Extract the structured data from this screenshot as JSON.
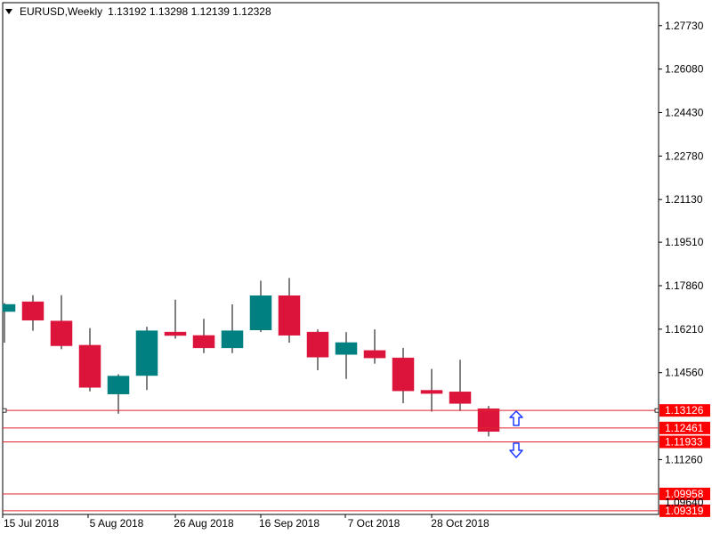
{
  "title": {
    "symbol_timeframe": "EURUSD,Weekly",
    "ohlc": "1.13192 1.13298 1.12139 1.12328"
  },
  "colors": {
    "bull": "#008080",
    "bear": "#dc143c",
    "level_line": "#e0242c",
    "level_label_bg": "#ff0000",
    "arrow": "#1e3cff",
    "axis": "#000000"
  },
  "icons": {
    "up_arrow": "arrow-up-outline",
    "down_arrow": "arrow-down-outline"
  },
  "chart_data": {
    "type": "candlestick",
    "y_ticks": [
      "1.27730",
      "1.26080",
      "1.24430",
      "1.22780",
      "1.21130",
      "1.19510",
      "1.17860",
      "1.16210",
      "1.14560"
    ],
    "x_ticks": [
      "15 Jul 2018",
      "5 Aug 2018",
      "26 Aug 2018",
      "16 Sep 2018",
      "7 Oct 2018",
      "28 Oct 2018"
    ],
    "ylim": [
      1.0918,
      1.286
    ],
    "candles": [
      {
        "o": 1.1688,
        "h": 1.172,
        "l": 1.157,
        "c": 1.1715
      },
      {
        "o": 1.1725,
        "h": 1.175,
        "l": 1.1615,
        "c": 1.1655
      },
      {
        "o": 1.1652,
        "h": 1.175,
        "l": 1.1545,
        "c": 1.1558
      },
      {
        "o": 1.156,
        "h": 1.1625,
        "l": 1.1385,
        "c": 1.14
      },
      {
        "o": 1.1375,
        "h": 1.145,
        "l": 1.13,
        "c": 1.1443
      },
      {
        "o": 1.1445,
        "h": 1.163,
        "l": 1.139,
        "c": 1.1615
      },
      {
        "o": 1.161,
        "h": 1.1733,
        "l": 1.1585,
        "c": 1.1597
      },
      {
        "o": 1.1597,
        "h": 1.166,
        "l": 1.153,
        "c": 1.155
      },
      {
        "o": 1.155,
        "h": 1.1715,
        "l": 1.153,
        "c": 1.1615
      },
      {
        "o": 1.1618,
        "h": 1.1805,
        "l": 1.161,
        "c": 1.1748
      },
      {
        "o": 1.1748,
        "h": 1.1815,
        "l": 1.157,
        "c": 1.1598
      },
      {
        "o": 1.161,
        "h": 1.162,
        "l": 1.1465,
        "c": 1.1515
      },
      {
        "o": 1.1525,
        "h": 1.161,
        "l": 1.1432,
        "c": 1.157
      },
      {
        "o": 1.154,
        "h": 1.162,
        "l": 1.149,
        "c": 1.1512
      },
      {
        "o": 1.1512,
        "h": 1.155,
        "l": 1.134,
        "c": 1.1387
      },
      {
        "o": 1.1389,
        "h": 1.147,
        "l": 1.1308,
        "c": 1.1377
      },
      {
        "o": 1.1383,
        "h": 1.1505,
        "l": 1.131,
        "c": 1.1339
      },
      {
        "o": 1.13192,
        "h": 1.13298,
        "l": 1.12139,
        "c": 1.12328
      }
    ],
    "levels": [
      {
        "value": 1.13126,
        "label": "1.13126"
      },
      {
        "value": 1.12461,
        "label": "1.12461"
      },
      {
        "value": 1.11933,
        "label": "1.11933"
      },
      {
        "value": 1.09958,
        "label": "1.09958"
      },
      {
        "value": 1.09319,
        "label": "1.09319"
      }
    ],
    "plain_ticks": [
      {
        "value": 1.1126,
        "label": "1.11260"
      }
    ],
    "hidden_tick_fragment": {
      "value": 1.0964,
      "label": "1.09640"
    }
  }
}
